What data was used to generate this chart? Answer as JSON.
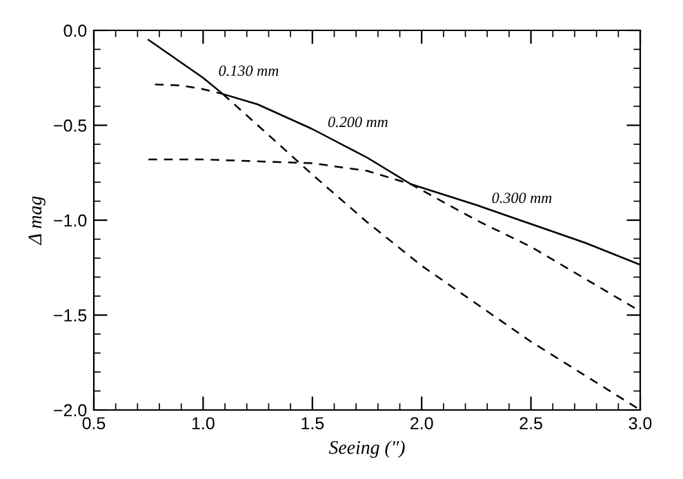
{
  "chart_data": {
    "type": "line",
    "xlabel": "Seeing (″)",
    "ylabel": "Δ mag",
    "xlim": [
      0.5,
      3.0
    ],
    "xticks": [
      {
        "value": 0.5,
        "label": "0.5"
      },
      {
        "value": 1.0,
        "label": "1.0"
      },
      {
        "value": 1.5,
        "label": "1.5"
      },
      {
        "value": 2.0,
        "label": "2.0"
      },
      {
        "value": 2.5,
        "label": "2.5"
      },
      {
        "value": 3.0,
        "label": "3.0"
      }
    ],
    "ylim": [
      -2.0,
      0.0
    ],
    "yticks": [
      {
        "value": -2.0,
        "label": "−2.0"
      },
      {
        "value": -1.5,
        "label": "−1.5"
      },
      {
        "value": -1.0,
        "label": "−1.0"
      },
      {
        "value": -0.5,
        "label": "−0.5"
      },
      {
        "value": 0.0,
        "label": "0.0"
      }
    ],
    "grid": false,
    "legend": false,
    "marker": "none",
    "series": [
      {
        "color": "#000000",
        "line_style": "solid",
        "x": [
          0.75,
          0.9,
          1.0,
          1.09,
          1.25,
          1.5,
          1.75,
          1.95,
          2.25,
          2.5,
          2.75,
          3.0
        ],
        "values": [
          -0.05,
          -0.17,
          -0.25,
          -0.335,
          -0.39,
          -0.52,
          -0.67,
          -0.81,
          -0.92,
          -1.02,
          -1.12,
          -1.235
        ]
      },
      {
        "color": "#000000",
        "line_style": "dashed",
        "x": [
          1.09,
          1.25,
          1.5,
          1.75,
          2.0,
          2.25,
          2.5,
          2.75,
          3.0
        ],
        "values": [
          -0.335,
          -0.5,
          -0.76,
          -1.01,
          -1.24,
          -1.44,
          -1.64,
          -1.82,
          -2.0
        ]
      },
      {
        "color": "#000000",
        "line_style": "dashed",
        "x": [
          0.78,
          0.9,
          1.0,
          1.09
        ],
        "values": [
          -0.285,
          -0.29,
          -0.31,
          -0.335
        ]
      },
      {
        "color": "#000000",
        "line_style": "dashed",
        "x": [
          0.75,
          1.0,
          1.25,
          1.5,
          1.75,
          1.95,
          2.25,
          2.5,
          2.75,
          3.0
        ],
        "values": [
          -0.68,
          -0.68,
          -0.69,
          -0.7,
          -0.74,
          -0.81,
          -1.0,
          -1.14,
          -1.31,
          -1.48
        ]
      }
    ],
    "annotations": [
      {
        "text": "0.130 mm",
        "x": 1.0,
        "y": -0.25
      },
      {
        "text": "0.200 mm",
        "x": 1.5,
        "y": -0.52
      },
      {
        "text": "0.300 mm",
        "x": 2.25,
        "y": -0.92
      }
    ]
  }
}
